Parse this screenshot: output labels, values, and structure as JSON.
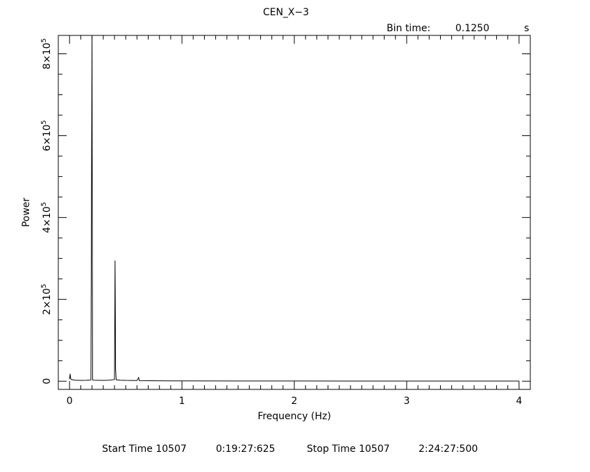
{
  "chart_data": {
    "type": "line",
    "title": "CEN_X−3",
    "bin_time": {
      "label": "Bin time:",
      "value": "0.1250",
      "unit": "s"
    },
    "xlabel": "Frequency (Hz)",
    "ylabel": "Power",
    "xlim": [
      -0.1,
      4.1
    ],
    "ylim": [
      -20000,
      845000
    ],
    "x_ticks": [
      {
        "value": 0,
        "label": "0"
      },
      {
        "value": 1,
        "label": "1"
      },
      {
        "value": 2,
        "label": "2"
      },
      {
        "value": 3,
        "label": "3"
      },
      {
        "value": 4,
        "label": "4"
      }
    ],
    "y_ticks": [
      {
        "value": 0,
        "mantissa": "0",
        "exponent": ""
      },
      {
        "value": 200000,
        "mantissa": "2×10",
        "exponent": "5"
      },
      {
        "value": 400000,
        "mantissa": "4×10",
        "exponent": "5"
      },
      {
        "value": 600000,
        "mantissa": "6×10",
        "exponent": "5"
      },
      {
        "value": 800000,
        "mantissa": "8×10",
        "exponent": "5"
      }
    ],
    "series": [
      {
        "x": [
          0.0,
          0.005,
          0.01,
          0.02,
          0.05,
          0.1,
          0.15,
          0.19,
          0.2,
          0.205,
          0.21,
          0.25,
          0.3,
          0.35,
          0.4,
          0.405,
          0.41,
          0.415,
          0.45,
          0.5,
          0.55,
          0.6,
          0.615,
          0.62,
          0.625,
          0.7,
          0.8,
          1.0,
          1.5,
          2.0,
          2.5,
          3.0,
          3.5,
          4.0
        ],
        "y": [
          5000,
          18000,
          6000,
          4000,
          2500,
          2000,
          2200,
          3000,
          845000,
          3000,
          2500,
          2200,
          2000,
          2500,
          4000,
          295000,
          30000,
          3500,
          2500,
          2000,
          1800,
          1600,
          9000,
          1800,
          1500,
          1200,
          1000,
          800,
          600,
          500,
          400,
          400,
          300,
          300
        ]
      }
    ],
    "grid": false,
    "footer": {
      "start_label": "Start Time 10507",
      "start_time": "0:19:27:625",
      "stop_label": "Stop Time 10507",
      "stop_time": "2:24:27:500"
    }
  }
}
